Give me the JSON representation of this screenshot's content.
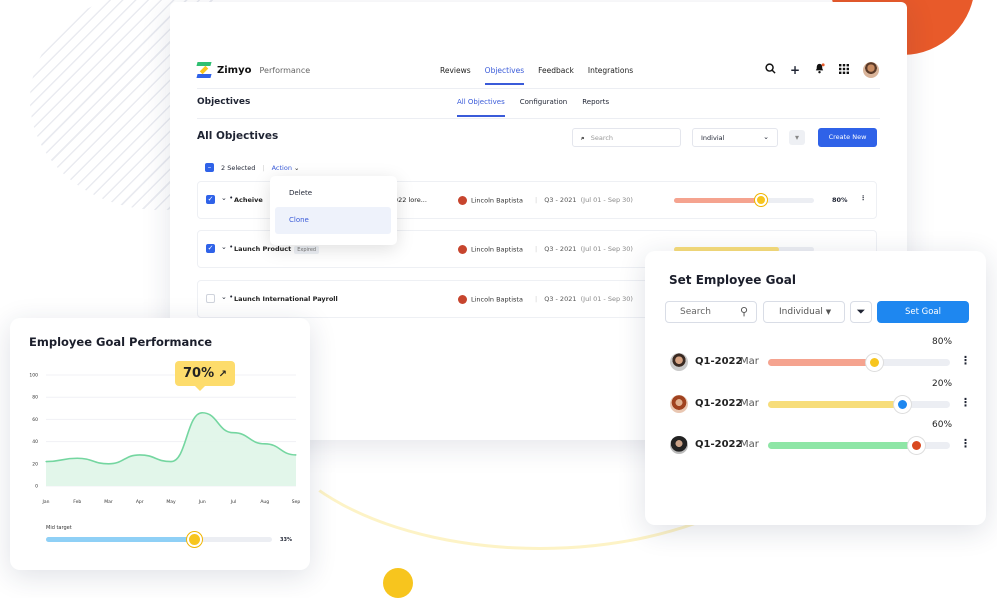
{
  "app": {
    "brand": "Zimyo",
    "brand_sub": "Performance",
    "top_nav": [
      "Reviews",
      "Objectives",
      "Feedback",
      "Integrations"
    ],
    "active_top_nav": "Objectives",
    "icons": [
      "search-icon",
      "plus-icon",
      "bell-icon",
      "grid-icon",
      "avatar"
    ],
    "section_title": "Objectives",
    "sub_tabs": [
      "All Objectives",
      "Configuration",
      "Reports"
    ],
    "page_title": "All Objectives",
    "search_placeholder": "Search",
    "select_value": "Indivial",
    "create_label": "Create New",
    "selected_count": "2 Selected",
    "action_label": "Action",
    "menu": [
      "Delete",
      "Clone"
    ],
    "rows": [
      {
        "checked": true,
        "name": "Acheive",
        "name_tail": "2022 lore...",
        "badge": "",
        "owner": "Lincoln Baptista",
        "period": "Q3 - 2021",
        "range": "(Jul 01 - Sep 30)",
        "progress": 0.62,
        "pct": "80%"
      },
      {
        "checked": true,
        "name": "Launch Product",
        "name_tail": "",
        "badge": "Expired",
        "owner": "Lincoln Baptista",
        "period": "Q3 - 2021",
        "range": "(Jul 01 - Sep 30)",
        "progress": 0.75,
        "pct": ""
      },
      {
        "checked": false,
        "name": "Launch International Payroll",
        "name_tail": "",
        "badge": "",
        "owner": "Lincoln Baptista",
        "period": "Q3 - 2021",
        "range": "(Jul 01 - Sep 30)",
        "progress": null,
        "pct": ""
      }
    ]
  },
  "perf_card": {
    "title": "Employee Goal Performance",
    "tooltip": "70%",
    "goal_label": "Mid target",
    "goal_pct": "33%",
    "goal_progress": 0.66
  },
  "chart_data": {
    "type": "area",
    "categories": [
      "Jan",
      "Feb",
      "Mar",
      "Apr",
      "May",
      "Jun",
      "Jul",
      "Aug",
      "Sep"
    ],
    "values": [
      22,
      25,
      20,
      28,
      22,
      66,
      48,
      38,
      28
    ],
    "yticks": [
      0,
      20,
      40,
      60,
      80,
      100
    ],
    "ylim": [
      0,
      100
    ],
    "colors": {
      "line": "#74d6a0",
      "fill": "#dff5e8"
    }
  },
  "goal_card": {
    "title": "Set Employee Goal",
    "search_placeholder": "Search",
    "select_value": "Individual",
    "button": "Set Goal",
    "rows": [
      {
        "quarter": "Q1-2022",
        "month": "Mar",
        "pct": "80%",
        "progress": 0.59,
        "color": "#f5a38f",
        "knob": "#f7c51e"
      },
      {
        "quarter": "Q1-2022",
        "month": "Mar",
        "pct": "20%",
        "progress": 0.74,
        "color": "#f7dd7a",
        "knob": "#1e87f0"
      },
      {
        "quarter": "Q1-2022",
        "month": "Mar",
        "pct": "60%",
        "progress": 0.82,
        "color": "#8ee6a6",
        "knob": "#d9481f"
      }
    ]
  }
}
